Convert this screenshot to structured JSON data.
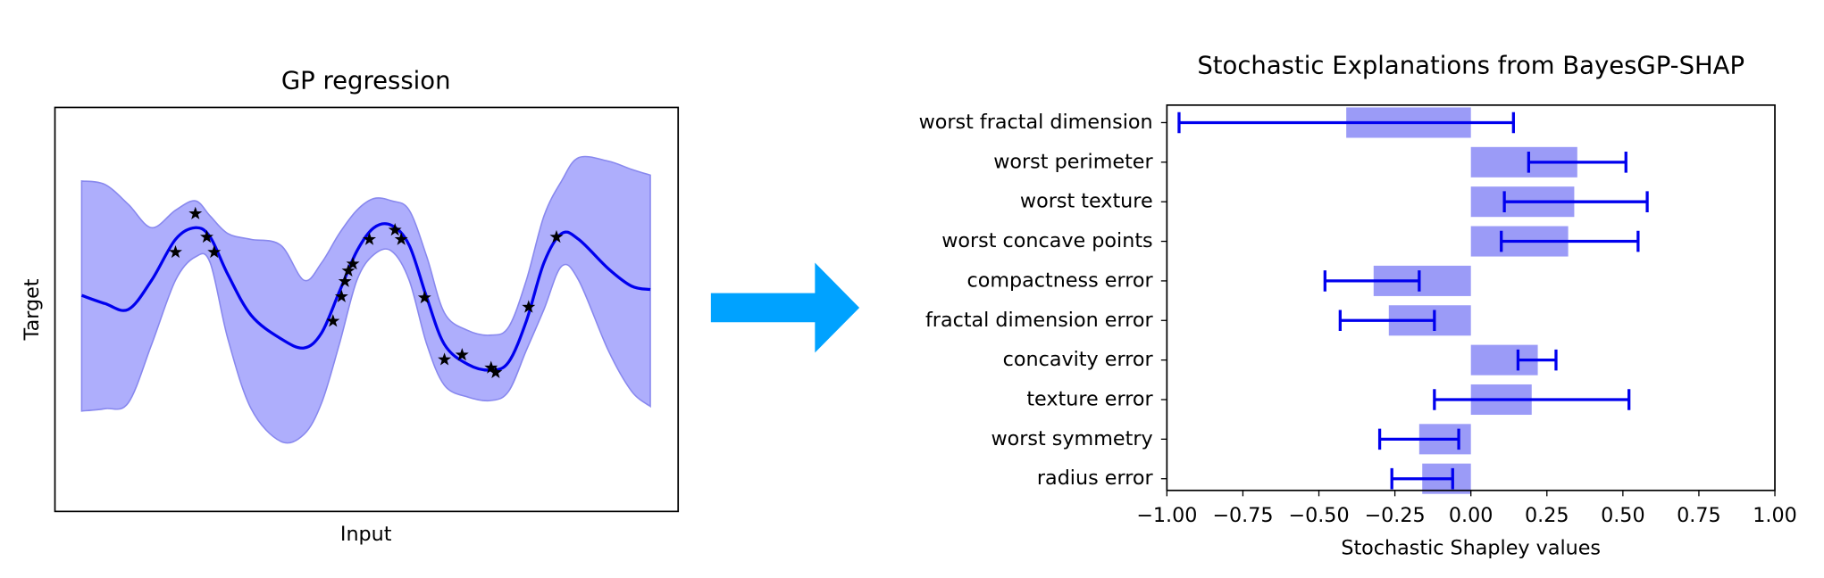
{
  "chart_data": [
    {
      "type": "line",
      "title": "GP regression",
      "x_label": "Input",
      "y_label": "Target",
      "x": [
        0,
        0.41,
        0.82,
        1.23,
        1.65,
        2.0,
        2.26,
        2.57,
        2.98,
        3.5,
        3.91,
        4.22,
        4.53,
        4.84,
        5.14,
        5.45,
        5.76,
        6.07,
        6.38,
        6.79,
        7.2,
        7.51,
        7.82,
        8.13,
        8.44,
        8.74,
        9.26,
        9.67,
        10
      ],
      "mean": [
        0.24,
        0.1,
        0,
        0.5,
        1.2,
        1.4,
        1.24,
        0.6,
        -0.1,
        -0.5,
        -0.66,
        -0.4,
        0.3,
        1.0,
        1.4,
        1.44,
        1.1,
        0.2,
        -0.6,
        -0.94,
        -1.04,
        -0.9,
        -0.2,
        0.8,
        1.3,
        1.2,
        0.7,
        0.4,
        0.34
      ],
      "upper": [
        2.2,
        2.14,
        1.8,
        1.4,
        1.7,
        1.86,
        1.6,
        1.3,
        1.2,
        1.1,
        0.5,
        0.8,
        1.3,
        1.7,
        1.9,
        1.86,
        1.7,
        0.9,
        -0.06,
        -0.36,
        -0.44,
        -0.3,
        0.5,
        1.6,
        2.2,
        2.6,
        2.54,
        2.4,
        2.3
      ],
      "lower": [
        -1.74,
        -1.7,
        -1.6,
        -0.6,
        0.5,
        0.9,
        0.8,
        -0.5,
        -1.7,
        -2.26,
        -2.14,
        -1.6,
        -0.6,
        0.5,
        0.94,
        1.0,
        0.5,
        -0.6,
        -1.3,
        -1.5,
        -1.56,
        -1.4,
        -0.7,
        0,
        0.74,
        0.5,
        -0.7,
        -1.4,
        -1.66
      ],
      "points_x": [
        1.65,
        2.0,
        2.2,
        2.33,
        4.42,
        4.57,
        4.63,
        4.69,
        4.77,
        5.06,
        5.51,
        5.62,
        6.03,
        6.38,
        6.69,
        7.2,
        7.28,
        7.86,
        8.35
      ],
      "points_y": [
        0.98,
        1.64,
        1.24,
        0.98,
        -0.2,
        0.22,
        0.48,
        0.66,
        0.78,
        1.2,
        1.36,
        1.2,
        0.2,
        -0.86,
        -0.78,
        -1.0,
        -1.08,
        0.04,
        1.24
      ],
      "line_color": "#0000ee",
      "band_color": "#aeaefc",
      "band_edge_color": "#8888ee",
      "point_color": "#000000",
      "xlim": [
        -0.47,
        10.49
      ],
      "ylim": [
        -3.46,
        3.46
      ]
    },
    {
      "type": "barh",
      "title": "Stochastic Explanations from BayesGP-SHAP",
      "x_label": "Stochastic Shapley values",
      "categories": [
        "worst fractal dimension",
        "worst perimeter",
        "worst texture",
        "worst concave points",
        "compactness error",
        "fractal dimension error",
        "concavity error",
        "texture error",
        "worst symmetry",
        "radius error"
      ],
      "values": [
        -0.41,
        0.35,
        0.34,
        0.32,
        -0.32,
        -0.27,
        0.22,
        0.2,
        -0.17,
        -0.16
      ],
      "err_low": [
        -0.96,
        0.19,
        0.11,
        0.1,
        -0.48,
        -0.43,
        0.155,
        -0.12,
        -0.3,
        -0.26
      ],
      "err_high": [
        0.14,
        0.51,
        0.58,
        0.55,
        -0.17,
        -0.12,
        0.28,
        0.52,
        -0.04,
        -0.06
      ],
      "color": "#9b9bf7",
      "err_color": "#0000ee",
      "xlim": [
        -1,
        1
      ],
      "xticks": [
        {
          "value": -1,
          "label": "−1.00"
        },
        {
          "value": -0.75,
          "label": "−0.75"
        },
        {
          "value": -0.5,
          "label": "−0.50"
        },
        {
          "value": -0.25,
          "label": "−0.25"
        },
        {
          "value": 0,
          "label": "0.00"
        },
        {
          "value": 0.25,
          "label": "0.25"
        },
        {
          "value": 0.5,
          "label": "0.50"
        },
        {
          "value": 0.75,
          "label": "0.75"
        },
        {
          "value": 1,
          "label": "1.00"
        }
      ]
    }
  ]
}
